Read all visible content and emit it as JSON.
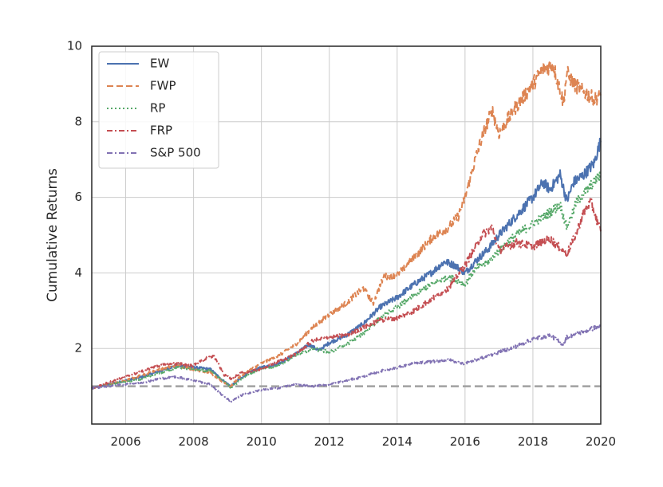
{
  "chart_data": {
    "type": "line",
    "title": "",
    "xlabel": "",
    "ylabel": "Cumulative Returns",
    "xlim": [
      2005.0,
      2020.0
    ],
    "ylim": [
      0.0,
      10.0
    ],
    "x_ticks": [
      2006,
      2008,
      2010,
      2012,
      2014,
      2016,
      2018,
      2020
    ],
    "y_ticks": [
      2,
      4,
      6,
      8,
      10
    ],
    "grid": true,
    "legend_position": "top-left",
    "reference_line": {
      "y": 1.0,
      "style": "dashed",
      "color": "#a0a0a0"
    },
    "series": [
      {
        "name": "EW",
        "color": "#4c72b0",
        "dash": "solid",
        "x": [
          2005.0,
          2005.5,
          2006.0,
          2006.5,
          2007.0,
          2007.5,
          2008.0,
          2008.5,
          2008.8,
          2009.1,
          2009.3,
          2009.6,
          2010.0,
          2010.5,
          2011.0,
          2011.4,
          2011.7,
          2012.0,
          2012.5,
          2013.0,
          2013.5,
          2014.0,
          2014.5,
          2015.0,
          2015.4,
          2015.7,
          2016.0,
          2016.3,
          2016.7,
          2017.0,
          2017.5,
          2018.0,
          2018.3,
          2018.5,
          2018.8,
          2019.0,
          2019.2,
          2019.5,
          2019.8,
          2020.0
        ],
        "y": [
          0.95,
          1.05,
          1.15,
          1.25,
          1.4,
          1.55,
          1.5,
          1.45,
          1.2,
          1.0,
          1.15,
          1.35,
          1.5,
          1.6,
          1.85,
          2.1,
          1.95,
          2.15,
          2.35,
          2.65,
          3.1,
          3.35,
          3.7,
          4.0,
          4.3,
          4.2,
          4.0,
          4.3,
          4.65,
          5.0,
          5.5,
          6.0,
          6.4,
          6.2,
          6.6,
          5.9,
          6.4,
          6.6,
          6.9,
          7.5
        ]
      },
      {
        "name": "FWP",
        "color": "#dd8452",
        "dash": "dashed",
        "x": [
          2005.0,
          2005.5,
          2006.0,
          2006.5,
          2007.0,
          2007.5,
          2008.0,
          2008.5,
          2008.8,
          2009.1,
          2009.3,
          2009.6,
          2010.0,
          2010.5,
          2011.0,
          2011.5,
          2012.0,
          2012.5,
          2013.0,
          2013.3,
          2013.6,
          2014.0,
          2014.5,
          2015.0,
          2015.5,
          2015.8,
          2016.0,
          2016.3,
          2016.5,
          2016.8,
          2017.0,
          2017.5,
          2018.0,
          2018.3,
          2018.6,
          2018.9,
          2019.0,
          2019.2,
          2019.5,
          2019.8,
          2020.0
        ],
        "y": [
          0.95,
          1.05,
          1.15,
          1.3,
          1.45,
          1.55,
          1.45,
          1.35,
          1.15,
          1.0,
          1.2,
          1.4,
          1.6,
          1.8,
          2.1,
          2.55,
          2.9,
          3.2,
          3.6,
          3.2,
          3.9,
          3.95,
          4.4,
          4.9,
          5.2,
          5.5,
          6.0,
          7.0,
          7.6,
          8.3,
          7.7,
          8.4,
          9.0,
          9.4,
          9.5,
          8.5,
          9.3,
          9.0,
          8.8,
          8.6,
          8.7
        ]
      },
      {
        "name": "RP",
        "color": "#55a868",
        "dash": "dotted",
        "x": [
          2005.0,
          2005.5,
          2006.0,
          2006.5,
          2007.0,
          2007.5,
          2008.0,
          2008.5,
          2008.8,
          2009.1,
          2009.3,
          2009.6,
          2010.0,
          2010.5,
          2011.0,
          2011.5,
          2012.0,
          2012.5,
          2013.0,
          2013.5,
          2014.0,
          2014.5,
          2015.0,
          2015.5,
          2016.0,
          2016.3,
          2016.7,
          2017.0,
          2017.5,
          2018.0,
          2018.5,
          2018.8,
          2019.0,
          2019.3,
          2019.6,
          2020.0
        ],
        "y": [
          0.95,
          1.05,
          1.12,
          1.2,
          1.35,
          1.5,
          1.45,
          1.4,
          1.2,
          0.95,
          1.1,
          1.3,
          1.45,
          1.55,
          1.8,
          2.0,
          1.9,
          2.1,
          2.4,
          2.8,
          3.1,
          3.4,
          3.7,
          3.9,
          3.7,
          4.1,
          4.3,
          4.6,
          5.0,
          5.3,
          5.6,
          5.8,
          5.2,
          5.9,
          6.2,
          6.6
        ]
      },
      {
        "name": "FRP",
        "color": "#c44e52",
        "dash": "dashdot",
        "x": [
          2005.0,
          2005.5,
          2006.0,
          2006.5,
          2007.0,
          2007.5,
          2008.0,
          2008.4,
          2008.6,
          2008.9,
          2009.1,
          2009.4,
          2009.7,
          2010.0,
          2010.5,
          2011.0,
          2011.5,
          2012.0,
          2012.5,
          2013.0,
          2013.5,
          2014.0,
          2014.5,
          2015.0,
          2015.5,
          2016.0,
          2016.5,
          2016.8,
          2017.0,
          2017.5,
          2018.0,
          2018.5,
          2019.0,
          2019.3,
          2019.5,
          2019.7,
          2020.0
        ],
        "y": [
          0.95,
          1.1,
          1.25,
          1.4,
          1.55,
          1.6,
          1.55,
          1.75,
          1.8,
          1.3,
          1.2,
          1.35,
          1.4,
          1.45,
          1.65,
          1.85,
          2.2,
          2.3,
          2.35,
          2.55,
          2.75,
          2.8,
          3.0,
          3.3,
          3.6,
          4.2,
          5.0,
          5.2,
          4.6,
          4.8,
          4.7,
          4.9,
          4.5,
          5.1,
          5.6,
          5.9,
          5.1
        ]
      },
      {
        "name": "S&P 500",
        "color": "#8172b3",
        "dash": "dashdot",
        "x": [
          2005.0,
          2005.5,
          2006.0,
          2006.5,
          2007.0,
          2007.5,
          2008.0,
          2008.5,
          2008.8,
          2009.1,
          2009.5,
          2010.0,
          2010.5,
          2011.0,
          2011.5,
          2012.0,
          2012.5,
          2013.0,
          2013.5,
          2014.0,
          2014.5,
          2015.0,
          2015.5,
          2016.0,
          2016.5,
          2017.0,
          2017.5,
          2018.0,
          2018.5,
          2018.9,
          2019.0,
          2019.5,
          2020.0
        ],
        "y": [
          0.95,
          1.0,
          1.05,
          1.1,
          1.2,
          1.25,
          1.15,
          1.05,
          0.8,
          0.6,
          0.8,
          0.9,
          0.95,
          1.05,
          1.0,
          1.05,
          1.15,
          1.25,
          1.4,
          1.5,
          1.6,
          1.65,
          1.7,
          1.6,
          1.75,
          1.9,
          2.05,
          2.25,
          2.35,
          2.1,
          2.3,
          2.45,
          2.6
        ]
      }
    ]
  }
}
